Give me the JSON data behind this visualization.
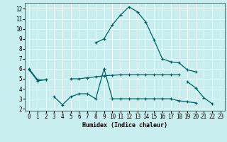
{
  "x": [
    0,
    1,
    2,
    3,
    4,
    5,
    6,
    7,
    8,
    9,
    10,
    11,
    12,
    13,
    14,
    15,
    16,
    17,
    18,
    19,
    20,
    21,
    22,
    23
  ],
  "line1": [
    6.0,
    4.9,
    4.9,
    null,
    null,
    null,
    null,
    null,
    8.6,
    9.0,
    10.4,
    11.4,
    12.2,
    11.7,
    10.7,
    8.9,
    7.0,
    6.7,
    6.6,
    5.9,
    5.7,
    null,
    null,
    null
  ],
  "line2": [
    5.9,
    4.8,
    4.9,
    null,
    null,
    5.0,
    5.0,
    5.1,
    5.2,
    5.3,
    5.35,
    5.4,
    5.4,
    5.4,
    5.4,
    5.4,
    5.4,
    5.4,
    5.4,
    null,
    null,
    null,
    null,
    null
  ],
  "line3": [
    null,
    null,
    null,
    3.2,
    2.4,
    3.2,
    3.5,
    3.5,
    3.0,
    6.0,
    3.0,
    3.0,
    3.0,
    3.0,
    3.0,
    3.0,
    3.0,
    3.0,
    2.8,
    2.7,
    2.6,
    null,
    null,
    null
  ],
  "line4": [
    null,
    null,
    null,
    null,
    null,
    null,
    null,
    null,
    null,
    null,
    null,
    null,
    null,
    null,
    null,
    null,
    null,
    null,
    null,
    4.7,
    4.1,
    3.1,
    2.5,
    null
  ],
  "bg_color": "#c8eef0",
  "grid_color": "#ffffff",
  "line_color": "#006060",
  "yticks": [
    2,
    3,
    4,
    5,
    6,
    7,
    8,
    9,
    10,
    11,
    12
  ],
  "xlabel": "Humidex (Indice chaleur)",
  "ylim": [
    1.8,
    12.6
  ],
  "xlim": [
    -0.5,
    23.5
  ]
}
